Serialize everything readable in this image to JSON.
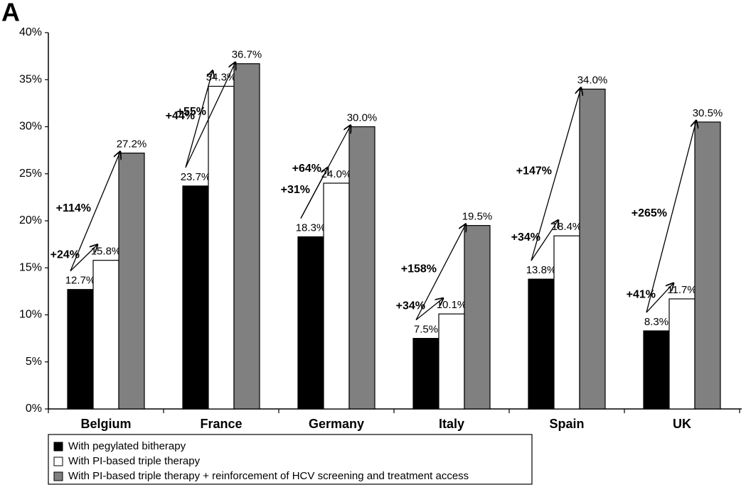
{
  "panel_label": "A",
  "chart_data": {
    "type": "bar",
    "categories": [
      "Belgium",
      "France",
      "Germany",
      "Italy",
      "Spain",
      "UK"
    ],
    "series": [
      {
        "name": "With pegylated bitherapy",
        "color": "#000000",
        "values": [
          12.7,
          23.7,
          18.3,
          7.5,
          13.8,
          8.3
        ],
        "value_labels": [
          "12.7%",
          "23.7%",
          "18.3%",
          "7.5%",
          "13.8%",
          "8.3%"
        ]
      },
      {
        "name": "With PI-based triple therapy",
        "color": "#ffffff",
        "values": [
          15.8,
          34.3,
          24.0,
          10.1,
          18.4,
          11.7
        ],
        "value_labels": [
          "15.8%",
          "34.3%",
          "24.0%",
          "10.1%",
          "18.4%",
          "11.7%"
        ]
      },
      {
        "name": "With PI-based triple therapy + reinforcement of HCV screening and treatment access",
        "color": "#808080",
        "values": [
          27.2,
          36.7,
          30.0,
          19.5,
          34.0,
          30.5
        ],
        "value_labels": [
          "27.2%",
          "36.7%",
          "30.0%",
          "19.5%",
          "34.0%",
          "30.5%"
        ]
      }
    ],
    "increase_labels": {
      "to_triple": [
        "+24%",
        "+44%",
        "+31%",
        "+34%",
        "+34%",
        "+41%"
      ],
      "to_reinforced": [
        "+114%",
        "+55%",
        "+64%",
        "+158%",
        "+147%",
        "+265%"
      ]
    },
    "ylim": [
      0,
      40
    ],
    "yticks": [
      {
        "value": 0,
        "label": "0%"
      },
      {
        "value": 5,
        "label": "5%"
      },
      {
        "value": 10,
        "label": "10%"
      },
      {
        "value": 15,
        "label": "15%"
      },
      {
        "value": 20,
        "label": "20%"
      },
      {
        "value": 25,
        "label": "25%"
      },
      {
        "value": 30,
        "label": "30%"
      },
      {
        "value": 35,
        "label": "35%"
      },
      {
        "value": 40,
        "label": "40%"
      }
    ],
    "grid": false
  }
}
